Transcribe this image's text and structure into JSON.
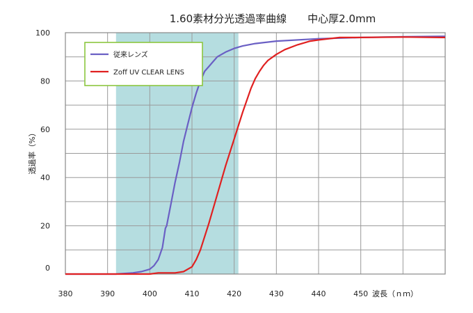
{
  "chart_data": {
    "type": "line",
    "title": "1.60素材分光透過率曲線　　中心厚2.0mm",
    "xlabel": "波長（ｎｍ）",
    "ylabel": "透過率（%）",
    "xlim": [
      380,
      470
    ],
    "ylim": [
      0,
      100
    ],
    "x_ticks": [
      "380",
      "390",
      "400",
      "410",
      "420",
      "430",
      "440",
      "450"
    ],
    "y_ticks": [
      "0",
      "20",
      "40",
      "60",
      "80",
      "100"
    ],
    "grid": true,
    "legend_position": "top-left",
    "highlight_band": {
      "x_start": 392,
      "x_end": 421,
      "color": "#b5dde0"
    },
    "series": [
      {
        "name": "従来レンズ",
        "color": "#6a5fc4",
        "points": [
          [
            380,
            0
          ],
          [
            392,
            0
          ],
          [
            396,
            0.5
          ],
          [
            398,
            1
          ],
          [
            400,
            2
          ],
          [
            401,
            3.5
          ],
          [
            402,
            6
          ],
          [
            403,
            11
          ],
          [
            403.7,
            19
          ],
          [
            404,
            20
          ],
          [
            405,
            29
          ],
          [
            406,
            38
          ],
          [
            407,
            46
          ],
          [
            408,
            55
          ],
          [
            409,
            62
          ],
          [
            410,
            69
          ],
          [
            411,
            75
          ],
          [
            412,
            80
          ],
          [
            413,
            84
          ],
          [
            414,
            86
          ],
          [
            415,
            88
          ],
          [
            416,
            90
          ],
          [
            418,
            92
          ],
          [
            420,
            93.5
          ],
          [
            422,
            94.5
          ],
          [
            425,
            95.5
          ],
          [
            430,
            96.5
          ],
          [
            440,
            97.5
          ],
          [
            450,
            98
          ],
          [
            460,
            98.3
          ],
          [
            470,
            98.5
          ]
        ]
      },
      {
        "name": "Zoff UV CLEAR LENS",
        "color": "#e02020",
        "points": [
          [
            380,
            0
          ],
          [
            400,
            0
          ],
          [
            402,
            0.5
          ],
          [
            406,
            0.5
          ],
          [
            408,
            1
          ],
          [
            410,
            3
          ],
          [
            411,
            6
          ],
          [
            412,
            10
          ],
          [
            414,
            21
          ],
          [
            416,
            33
          ],
          [
            418,
            45
          ],
          [
            420,
            56
          ],
          [
            422,
            67
          ],
          [
            424,
            77
          ],
          [
            425,
            81
          ],
          [
            426,
            84
          ],
          [
            427,
            86.5
          ],
          [
            428,
            88.5
          ],
          [
            430,
            91
          ],
          [
            432,
            93
          ],
          [
            435,
            95
          ],
          [
            438,
            96.5
          ],
          [
            440,
            97
          ],
          [
            445,
            98
          ],
          [
            450,
            98
          ],
          [
            460,
            98.2
          ],
          [
            470,
            98
          ]
        ]
      }
    ]
  }
}
